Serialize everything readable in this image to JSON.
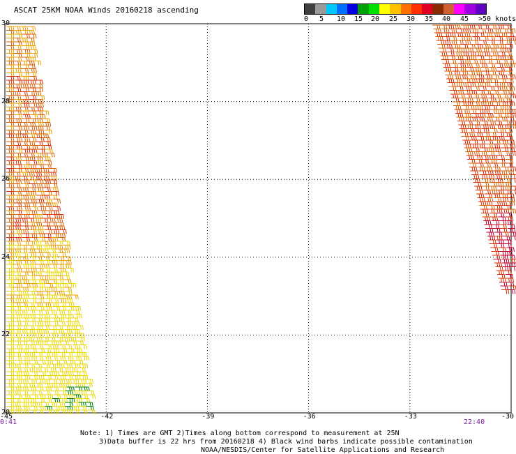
{
  "title": "ASCAT 25KM NOAA Winds 20160218 ascending",
  "legend": {
    "colors": [
      "#404040",
      "#9a9a9a",
      "#00c8ff",
      "#0070ff",
      "#0000e0",
      "#00a000",
      "#00e000",
      "#ffff00",
      "#ffc000",
      "#ff7000",
      "#ff3000",
      "#e00020",
      "#8a2a00",
      "#d06030",
      "#ff00ff",
      "#a000e0",
      "#6000c0"
    ],
    "labels": [
      "0",
      "5",
      "10",
      "15",
      "20",
      "25",
      "30",
      "35",
      "40",
      "45",
      ">50 knots"
    ]
  },
  "axes": {
    "lon_ticks": [
      "-45",
      "-42",
      "-39",
      "-36",
      "-33",
      "-30"
    ],
    "lat_ticks": [
      "30",
      "28",
      "26",
      "24",
      "22",
      "20"
    ],
    "lon_range": [
      -45,
      -30
    ],
    "lat_range": [
      20,
      30
    ]
  },
  "swath_times": {
    "left": "0:41",
    "right": "22:40"
  },
  "notes": {
    "line1": "Note: 1) Times are GMT 2)Times along bottom correspond to measurement at 25N",
    "line2": "3)Data buffer is 22 hrs from 20160218 4) Black wind barbs indicate possible contamination",
    "line3": "NOAA/NESDIS/Center for Satellite Applications and Research"
  },
  "wind_colors": {
    "yellow": "#e8d800",
    "gold": "#e8a000",
    "orange": "#d86000",
    "red": "#d83000",
    "crimson": "#c00030",
    "green": "#008000"
  }
}
